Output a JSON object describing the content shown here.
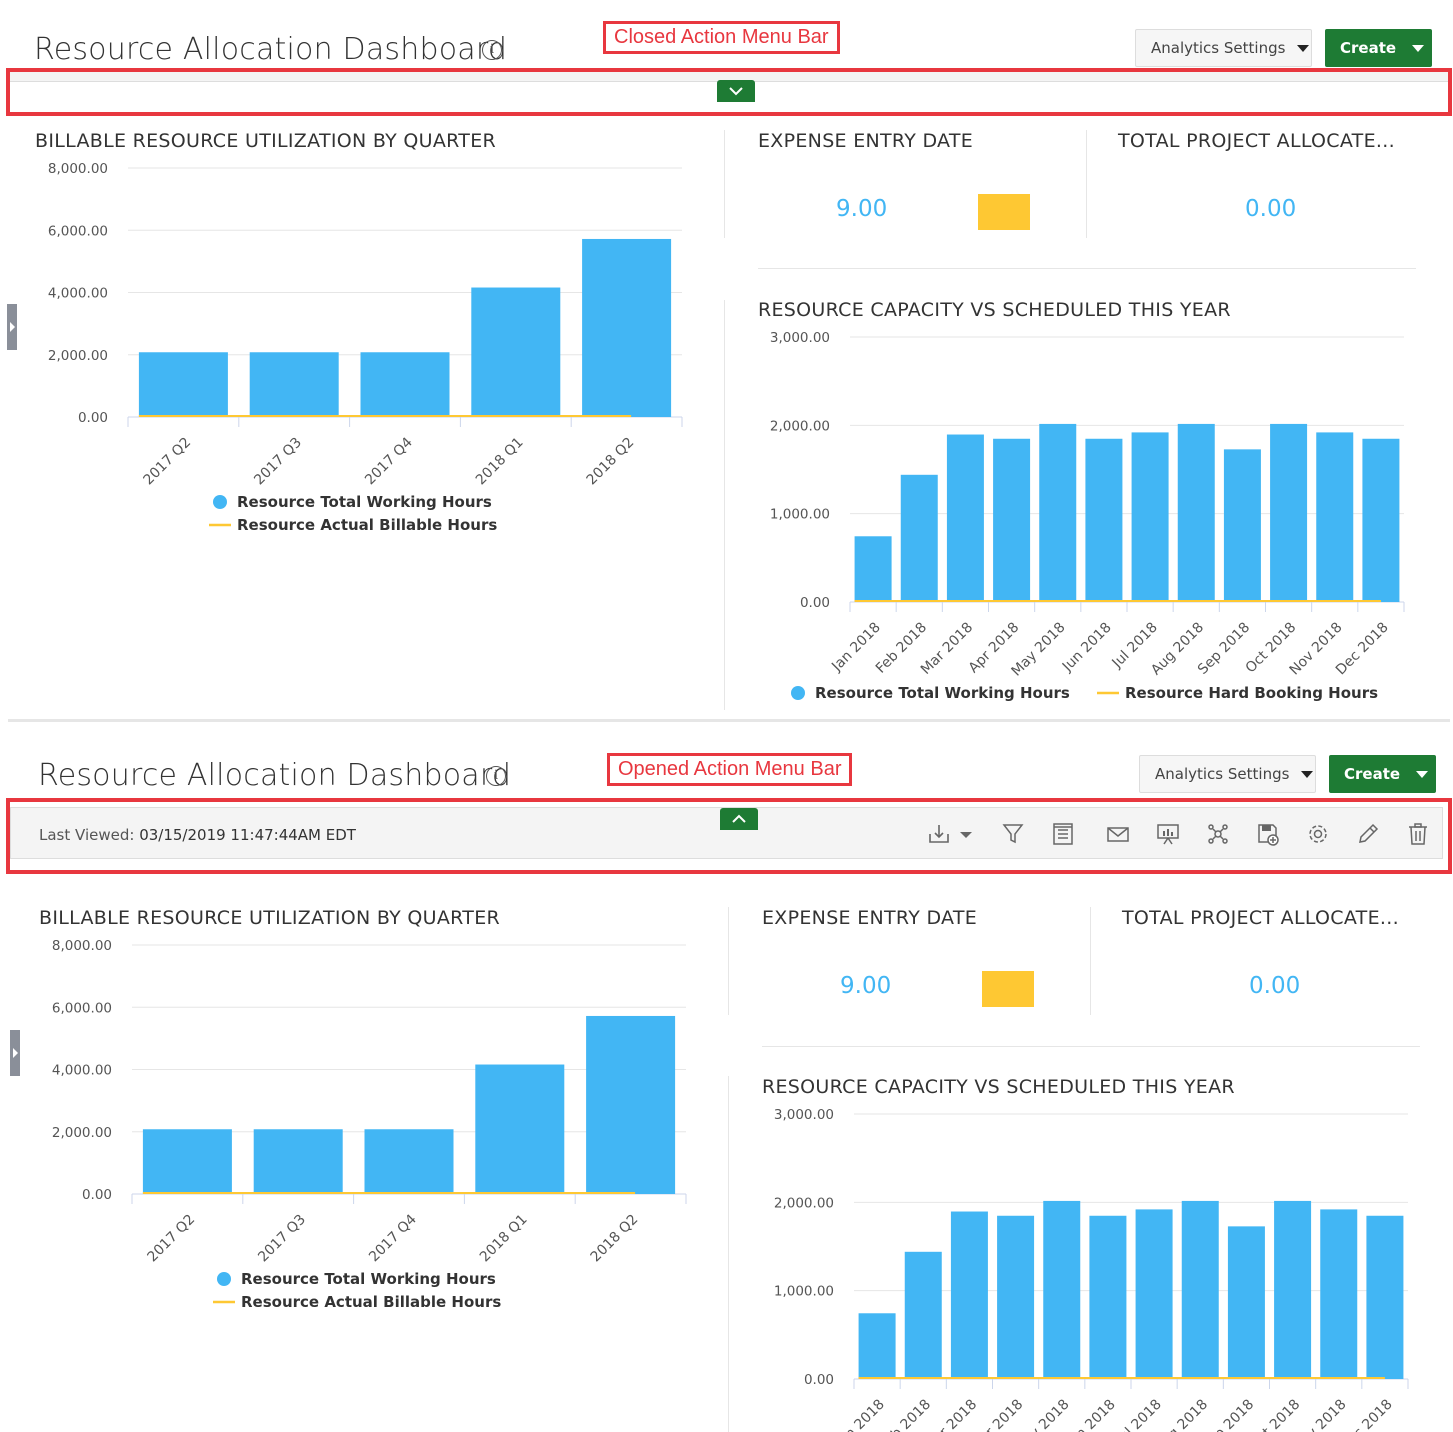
{
  "dashboard": {
    "title": "Resource Allocation Dashboard",
    "info_icon": "info-icon"
  },
  "annotations": {
    "closed": "Closed Action Menu Bar",
    "opened": "Opened Action Menu Bar"
  },
  "header": {
    "settings_label": "Analytics Settings",
    "create_label": "Create"
  },
  "menu_bar": {
    "last_viewed_label": "Last Viewed:",
    "last_viewed_value": "03/15/2019 11:47:44AM EDT",
    "tools": [
      "download-icon",
      "filter-icon",
      "report-icon",
      "email-icon",
      "presentation-icon",
      "network-icon",
      "save-icon",
      "gear-icon",
      "edit-icon",
      "trash-icon"
    ]
  },
  "cards": {
    "billable_title": "BILLABLE RESOURCE UTILIZATION BY QUARTER",
    "expense_title": "EXPENSE ENTRY DATE",
    "expense_value": "9.00",
    "total_title": "TOTAL PROJECT ALLOCATE...",
    "total_value": "0.00",
    "capacity_title": "RESOURCE CAPACITY VS SCHEDULED THIS YEAR"
  },
  "colors": {
    "bar": "#42b6f4",
    "line": "#fec833",
    "accent_green": "#1e7b34",
    "annotation_red": "#e8373f"
  },
  "chart_data": [
    {
      "type": "bar",
      "title": "BILLABLE RESOURCE UTILIZATION BY QUARTER",
      "categories": [
        "2017 Q2",
        "2017 Q3",
        "2017 Q4",
        "2018 Q1",
        "2018 Q2"
      ],
      "y_ticks": [
        "0.00",
        "2,000.00",
        "4,000.00",
        "6,000.00",
        "8,000.00"
      ],
      "ylim": [
        0,
        8000
      ],
      "series": [
        {
          "name": "Resource Total Working Hours",
          "kind": "bar",
          "values": [
            2080,
            2080,
            2080,
            4160,
            5720
          ]
        },
        {
          "name": "Resource Actual Billable Hours",
          "kind": "line",
          "values": [
            0,
            0,
            0,
            0,
            0
          ]
        }
      ],
      "legend": "bottom"
    },
    {
      "type": "bar",
      "title": "RESOURCE CAPACITY VS SCHEDULED THIS YEAR",
      "categories": [
        "Jan 2018",
        "Feb 2018",
        "Mar 2018",
        "Apr 2018",
        "May 2018",
        "Jun 2018",
        "Jul 2018",
        "Aug 2018",
        "Sep 2018",
        "Oct 2018",
        "Nov 2018",
        "Dec 2018"
      ],
      "y_ticks": [
        "0.00",
        "1,000.00",
        "2,000.00",
        "3,000.00"
      ],
      "ylim": [
        0,
        3000
      ],
      "series": [
        {
          "name": "Resource Total Working Hours",
          "kind": "bar",
          "values": [
            744,
            1440,
            1896,
            1848,
            2016,
            1848,
            1920,
            2016,
            1728,
            2016,
            1920,
            1848
          ]
        },
        {
          "name": "Resource Hard Booking Hours",
          "kind": "line",
          "values": [
            0,
            0,
            0,
            0,
            0,
            0,
            0,
            0,
            0,
            0,
            0,
            0
          ]
        }
      ],
      "legend": "bottom"
    }
  ]
}
